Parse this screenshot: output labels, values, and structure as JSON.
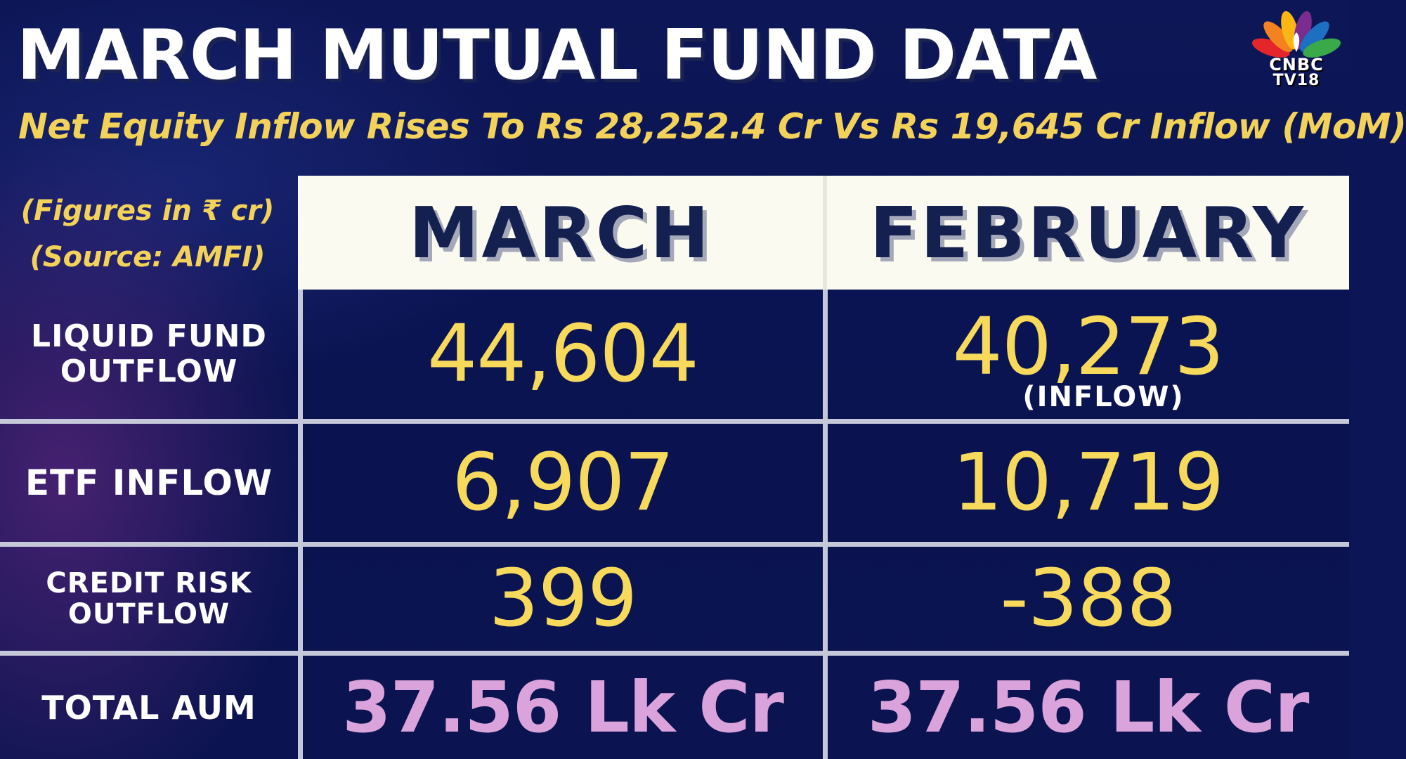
{
  "title": "MARCH MUTUAL FUND DATA",
  "subtitle": "Net Equity Inflow Rises To Rs 28,252.4 Cr Vs Rs 19,645 Cr Inflow (MoM)",
  "logo": {
    "line1": "CNBC",
    "line2": "TV18",
    "icon": "peacock-icon"
  },
  "notes": {
    "figures": "(Figures in ₹ cr)",
    "source": "(Source: AMFI)"
  },
  "columns": [
    "MARCH",
    "FEBRUARY"
  ],
  "rows": [
    {
      "label_line1": "LIQUID FUND",
      "label_line2": "OUTFLOW",
      "march": "44,604",
      "february": "40,273",
      "february_note": "(INFLOW)"
    },
    {
      "label_line1": "ETF INFLOW",
      "march": "6,907",
      "february": "10,719"
    },
    {
      "label_line1": "CREDIT RISK",
      "label_line2": "OUTFLOW",
      "march": "399",
      "february": "-388"
    },
    {
      "label_line1": "TOTAL AUM",
      "march": "37.56 Lk Cr",
      "february": "37.56 Lk Cr"
    }
  ],
  "colors": {
    "background": "#0c1556",
    "accent_yellow": "#f3d25a",
    "value_yellow": "#f7da5c",
    "aum_pink": "#dba3db",
    "header_bg": "#fbfaf1",
    "header_text": "#14204f"
  }
}
